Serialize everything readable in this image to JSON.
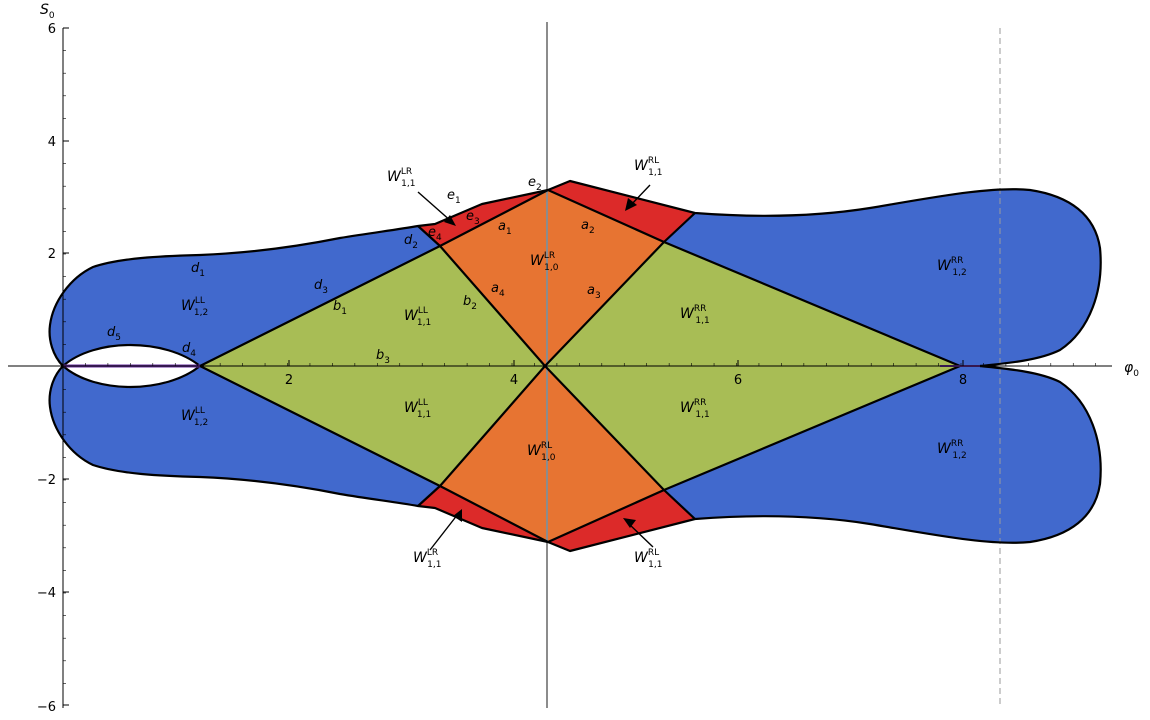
{
  "axes": {
    "x_label": "φ",
    "x_label_sub": "0",
    "y_label": "S",
    "y_label_sub": "0",
    "x_ticks": [
      "2",
      "4",
      "6",
      "8"
    ],
    "y_ticks": [
      "6",
      "4",
      "2",
      "−2",
      "−4",
      "−6"
    ]
  },
  "colors": {
    "outer": "#4169cd",
    "middle": "#a8bd55",
    "center": "#e77432",
    "corner": "#dc2a29",
    "outline": "#000000",
    "vertical_axis_line": "#8c8c8c",
    "dashed_line": "#9a9a9a",
    "horizontal_segment": "#6a2fa0"
  },
  "regions": [
    {
      "w": "W",
      "sup": "LL",
      "sub": "1,2"
    },
    {
      "w": "W",
      "sup": "LL",
      "sub": "1,1"
    },
    {
      "w": "W",
      "sup": "LR",
      "sub": "1,0"
    },
    {
      "w": "W",
      "sup": "RR",
      "sub": "1,1"
    },
    {
      "w": "W",
      "sup": "RR",
      "sub": "1,2"
    },
    {
      "w": "W",
      "sup": "LL",
      "sub": "1,2"
    },
    {
      "w": "W",
      "sup": "LL",
      "sub": "1,1"
    },
    {
      "w": "W",
      "sup": "RL",
      "sub": "1,0"
    },
    {
      "w": "W",
      "sup": "RR",
      "sub": "1,1"
    },
    {
      "w": "W",
      "sup": "RR",
      "sub": "1,2"
    },
    {
      "w": "W",
      "sup": "LR",
      "sub": "1,1"
    },
    {
      "w": "W",
      "sup": "RL",
      "sub": "1,1"
    },
    {
      "w": "W",
      "sup": "LR",
      "sub": "1,1"
    },
    {
      "w": "W",
      "sup": "RL",
      "sub": "1,1"
    }
  ],
  "edge_labels": [
    {
      "l": "a",
      "s": "1"
    },
    {
      "l": "a",
      "s": "2"
    },
    {
      "l": "a",
      "s": "3"
    },
    {
      "l": "a",
      "s": "4"
    },
    {
      "l": "b",
      "s": "1"
    },
    {
      "l": "b",
      "s": "2"
    },
    {
      "l": "b",
      "s": "3"
    },
    {
      "l": "d",
      "s": "1"
    },
    {
      "l": "d",
      "s": "2"
    },
    {
      "l": "d",
      "s": "3"
    },
    {
      "l": "d",
      "s": "4"
    },
    {
      "l": "d",
      "s": "5"
    },
    {
      "l": "e",
      "s": "1"
    },
    {
      "l": "e",
      "s": "2"
    },
    {
      "l": "e",
      "s": "3"
    },
    {
      "l": "e",
      "s": "4"
    }
  ]
}
